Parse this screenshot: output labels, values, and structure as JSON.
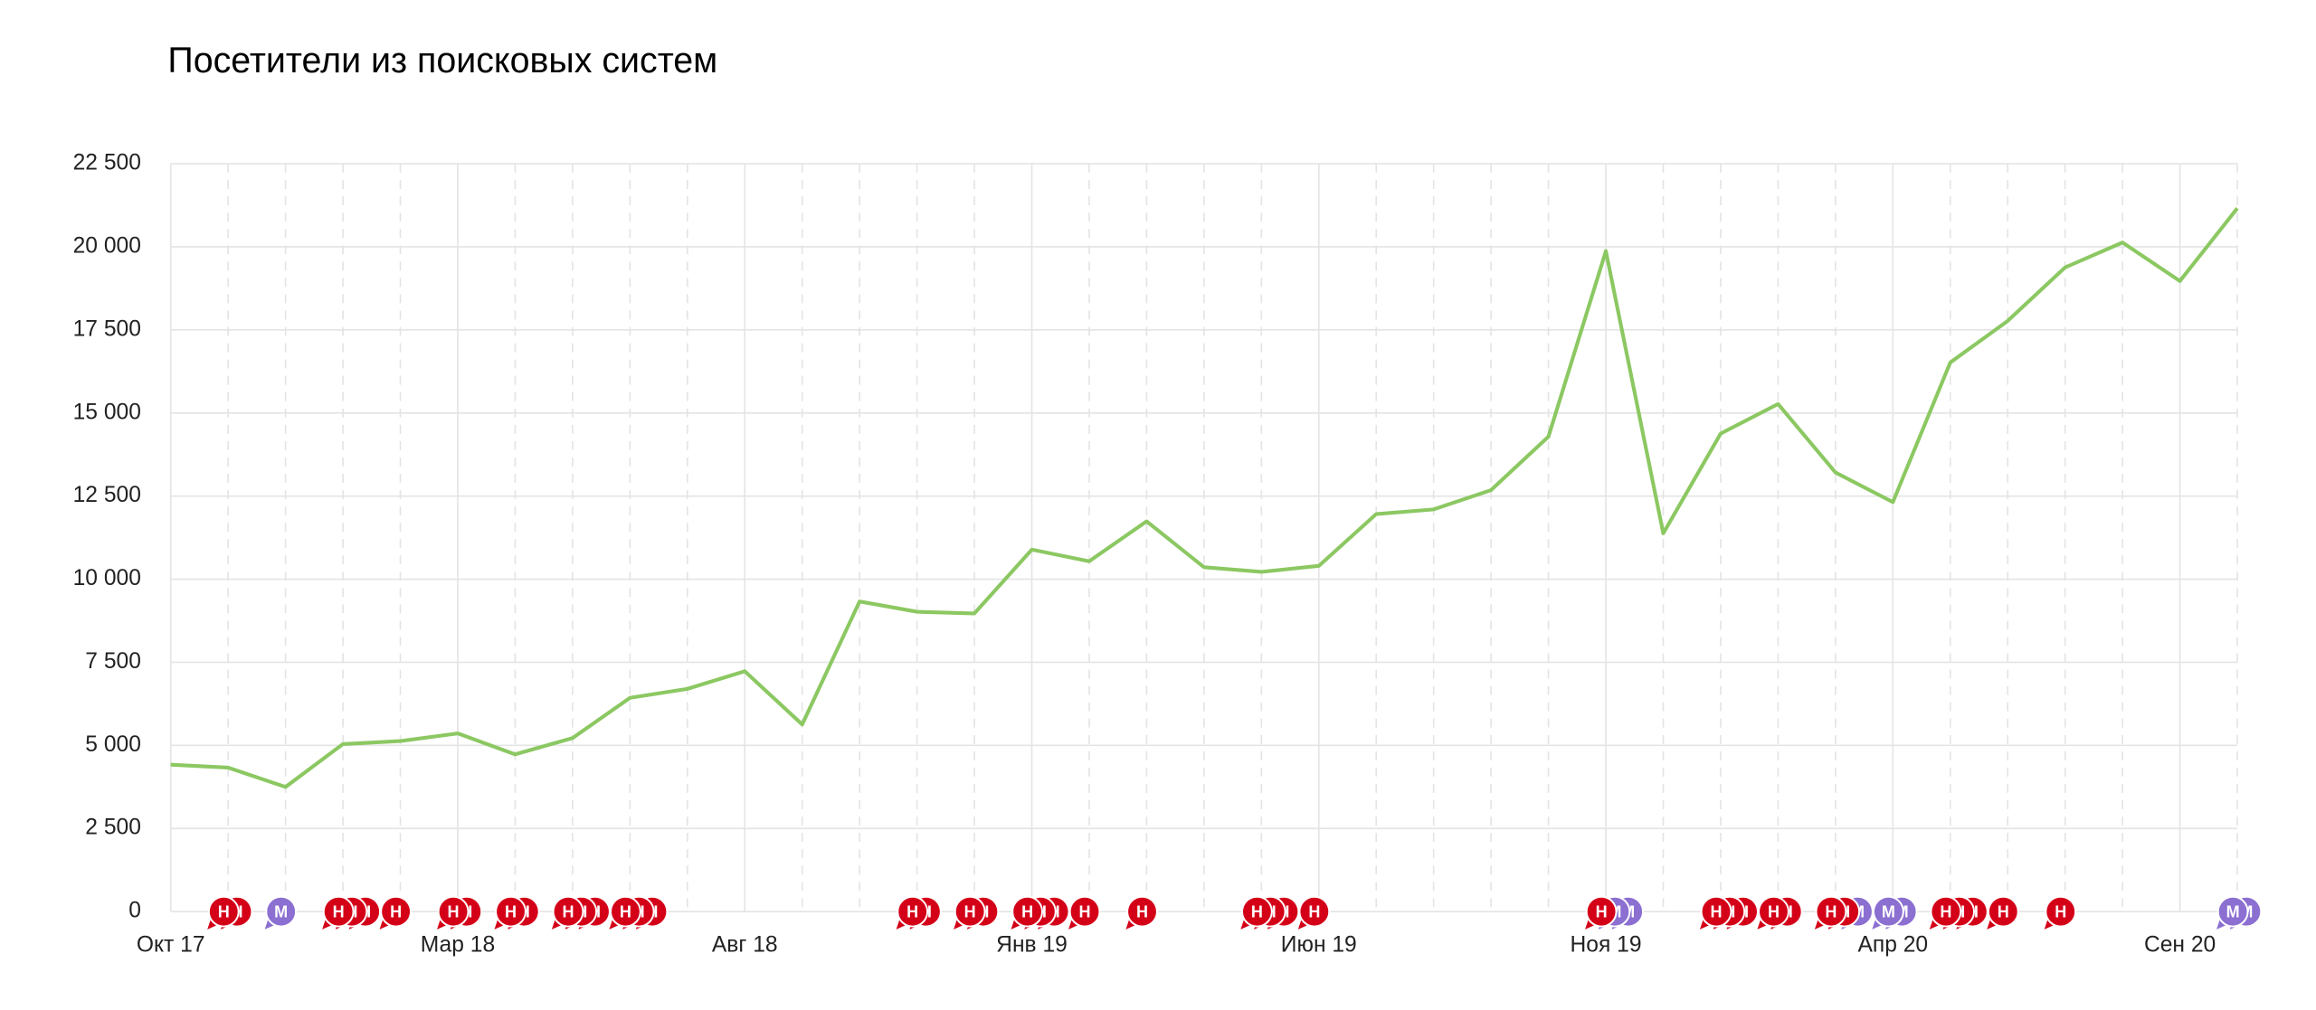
{
  "chart_data": {
    "type": "line",
    "title": "Посетители из поисковых систем",
    "categories": [
      "Окт 17",
      null,
      null,
      null,
      null,
      "Мар 18",
      null,
      null,
      null,
      null,
      "Авг 18",
      null,
      null,
      null,
      null,
      "Янв 19",
      null,
      null,
      null,
      null,
      "Июн 19",
      null,
      null,
      null,
      null,
      "Ноя 19",
      null,
      null,
      null,
      null,
      "Апр 20",
      null,
      null,
      null,
      null,
      "Сен 20",
      null
    ],
    "series": [
      {
        "color": "#8cc862",
        "values": [
          4420,
          4330,
          3750,
          5040,
          5130,
          5360,
          4730,
          5220,
          6430,
          6700,
          7230,
          5630,
          9330,
          9020,
          8970,
          10890,
          10540,
          11740,
          10360,
          10220,
          10400,
          11960,
          12100,
          12680,
          14290,
          19870,
          11380,
          14380,
          15270,
          13210,
          12320,
          16520,
          17770,
          19380,
          20130,
          18970,
          21160
        ]
      }
    ],
    "ylim": [
      0,
      22500
    ],
    "yticks": [
      0,
      {
        "value": 2500,
        "label": "2 500"
      },
      {
        "value": 5000,
        "label": "5 000"
      },
      {
        "value": 7500,
        "label": "7 500"
      },
      {
        "value": 10000,
        "label": "10 000"
      },
      {
        "value": 12500,
        "label": "12 500"
      },
      {
        "value": 15000,
        "label": "15 000"
      },
      {
        "value": 17500,
        "label": "17 500"
      },
      {
        "value": 20000,
        "label": "20 000"
      },
      {
        "value": 22500,
        "label": "22 500"
      }
    ],
    "grid": true,
    "event_colors": {
      "Н": "#d40018",
      "М": "#8b6fd1"
    },
    "events": [
      [],
      [
        "Н",
        "Н"
      ],
      [
        "М"
      ],
      [
        "Н",
        "Н",
        "Н"
      ],
      [
        "Н"
      ],
      [
        "Н",
        "Н"
      ],
      [
        "Н",
        "Н"
      ],
      [
        "Н",
        "Н",
        "Н"
      ],
      [
        "Н",
        "Н",
        "Н"
      ],
      [],
      [],
      [],
      [],
      [
        "Н",
        "Н"
      ],
      [
        "Н",
        "Н"
      ],
      [
        "Н",
        "Н",
        "Н"
      ],
      [
        "Н"
      ],
      [
        "Н"
      ],
      [],
      [
        "Н",
        "Н",
        "Н"
      ],
      [
        "Н"
      ],
      [],
      [],
      [],
      [],
      [
        "Н",
        "М",
        "М"
      ],
      [],
      [
        "Н",
        "Н",
        "Н"
      ],
      [
        "Н",
        "Н"
      ],
      [
        "Н",
        "Н",
        "М"
      ],
      [
        "М",
        "М"
      ],
      [
        "Н",
        "Н",
        "Н"
      ],
      [
        "Н"
      ],
      [
        "Н"
      ],
      [],
      [],
      [
        "М",
        "М"
      ]
    ]
  }
}
